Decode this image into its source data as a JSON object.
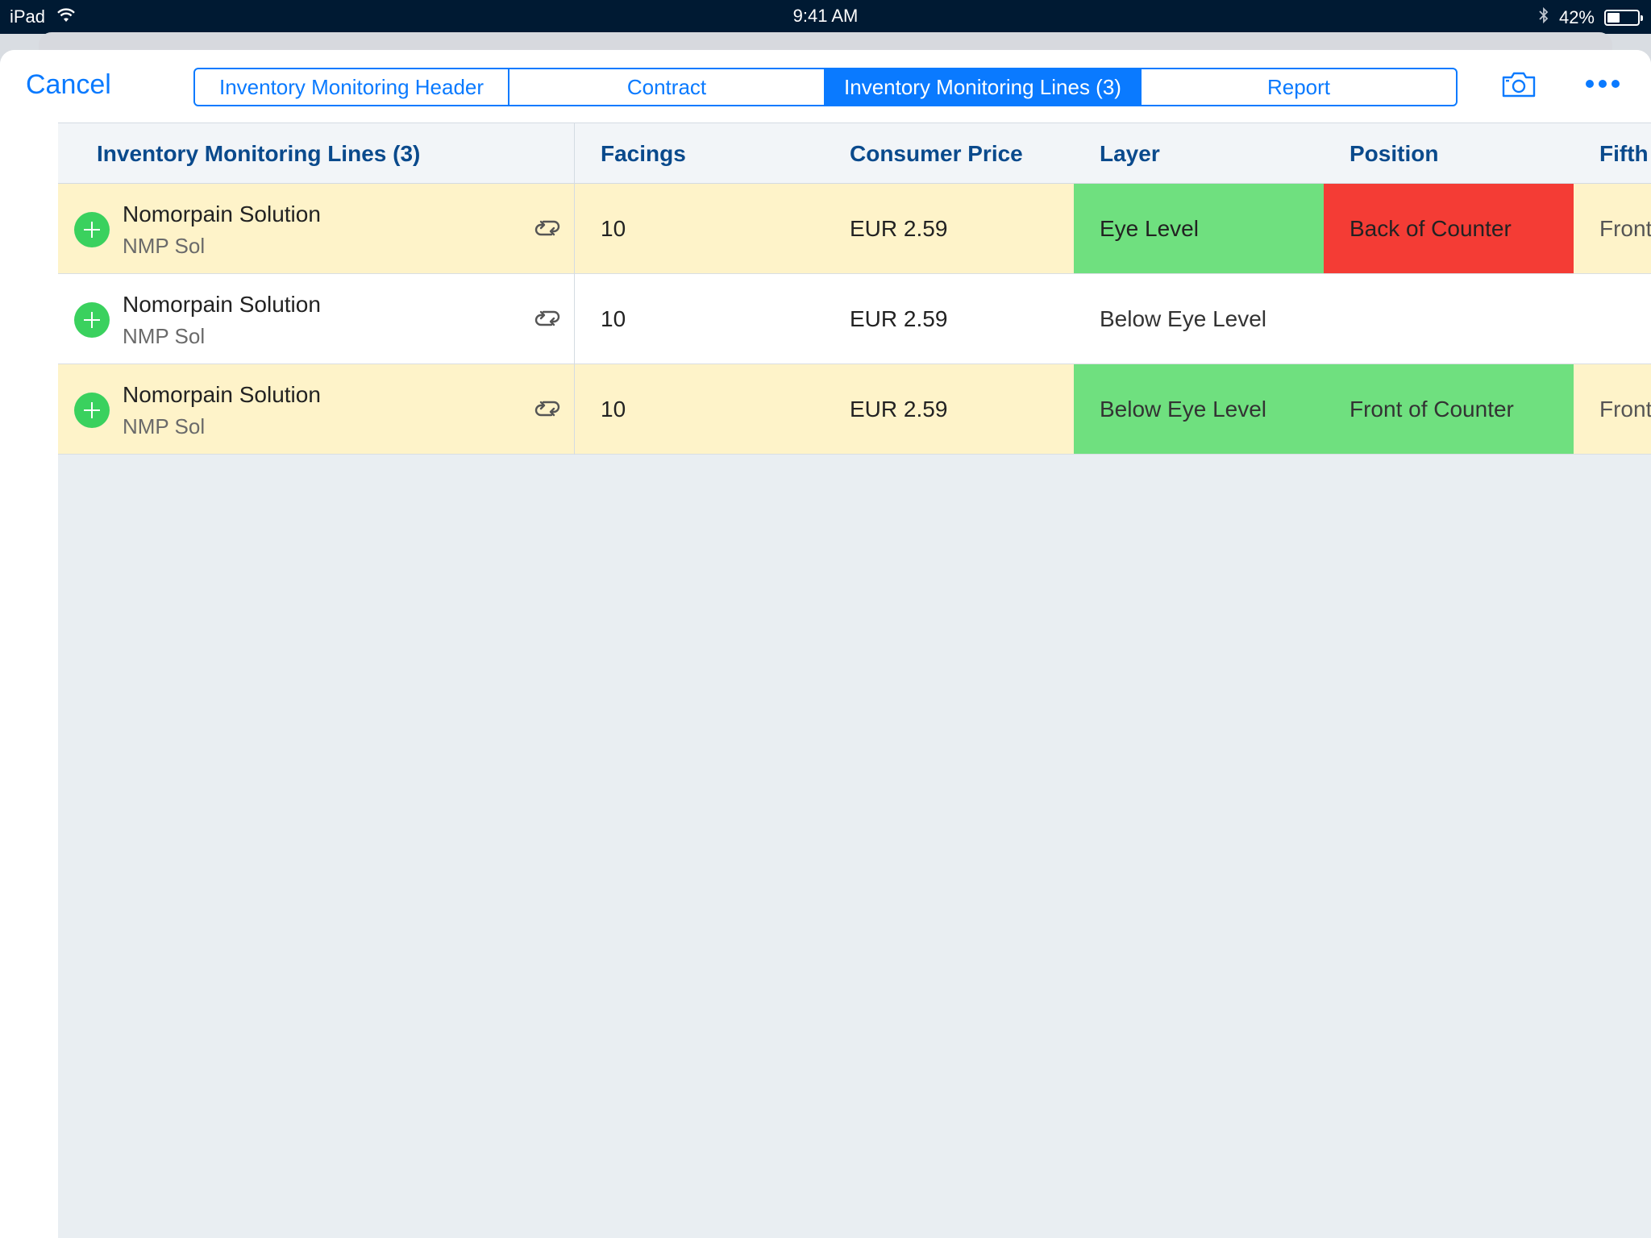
{
  "status_bar": {
    "device": "iPad",
    "time": "9:41 AM",
    "battery_text": "42%",
    "battery_level": 0.42,
    "icons": [
      "wifi-icon",
      "bluetooth-icon",
      "battery-icon"
    ]
  },
  "navbar": {
    "cancel_label": "Cancel",
    "tabs": [
      {
        "label": "Inventory Monitoring Header",
        "active": false
      },
      {
        "label": "Contract",
        "active": false
      },
      {
        "label": "Inventory Monitoring Lines (3)",
        "active": true
      },
      {
        "label": "Report",
        "active": false
      }
    ],
    "icons": [
      "camera-icon",
      "more-icon"
    ]
  },
  "table": {
    "headers": {
      "product": "Inventory Monitoring Lines (3)",
      "facings": "Facings",
      "consumer_price": "Consumer Price",
      "layer": "Layer",
      "position": "Position",
      "fifth": "Fifth"
    },
    "rows": [
      {
        "name": "Nomorpain Solution",
        "code": "NMP Sol",
        "facings": "10",
        "price": "EUR 2.59",
        "layer": "Eye Level",
        "position": "Back of Counter",
        "fifth": "Front",
        "row_color": "#fef3c9",
        "layer_color": "#6fe07f",
        "position_color": "#f43c35"
      },
      {
        "name": "Nomorpain Solution",
        "code": "NMP Sol",
        "facings": "10",
        "price": "EUR 2.59",
        "layer": "Below Eye Level",
        "position": "",
        "fifth": "",
        "row_color": "#ffffff",
        "layer_color": "",
        "position_color": ""
      },
      {
        "name": "Nomorpain Solution",
        "code": "NMP Sol",
        "facings": "10",
        "price": "EUR 2.59",
        "layer": "Below Eye Level",
        "position": "Front of Counter",
        "fifth": "Front",
        "row_color": "#fef3c9",
        "layer_color": "#6fe07f",
        "position_color": "#6fe07f"
      }
    ],
    "row_icons": [
      "add-circle-icon",
      "swap-icon"
    ]
  },
  "colors": {
    "accent": "#0a7aff",
    "header_text": "#0a4a8c",
    "status_bar_bg": "#001a33"
  }
}
